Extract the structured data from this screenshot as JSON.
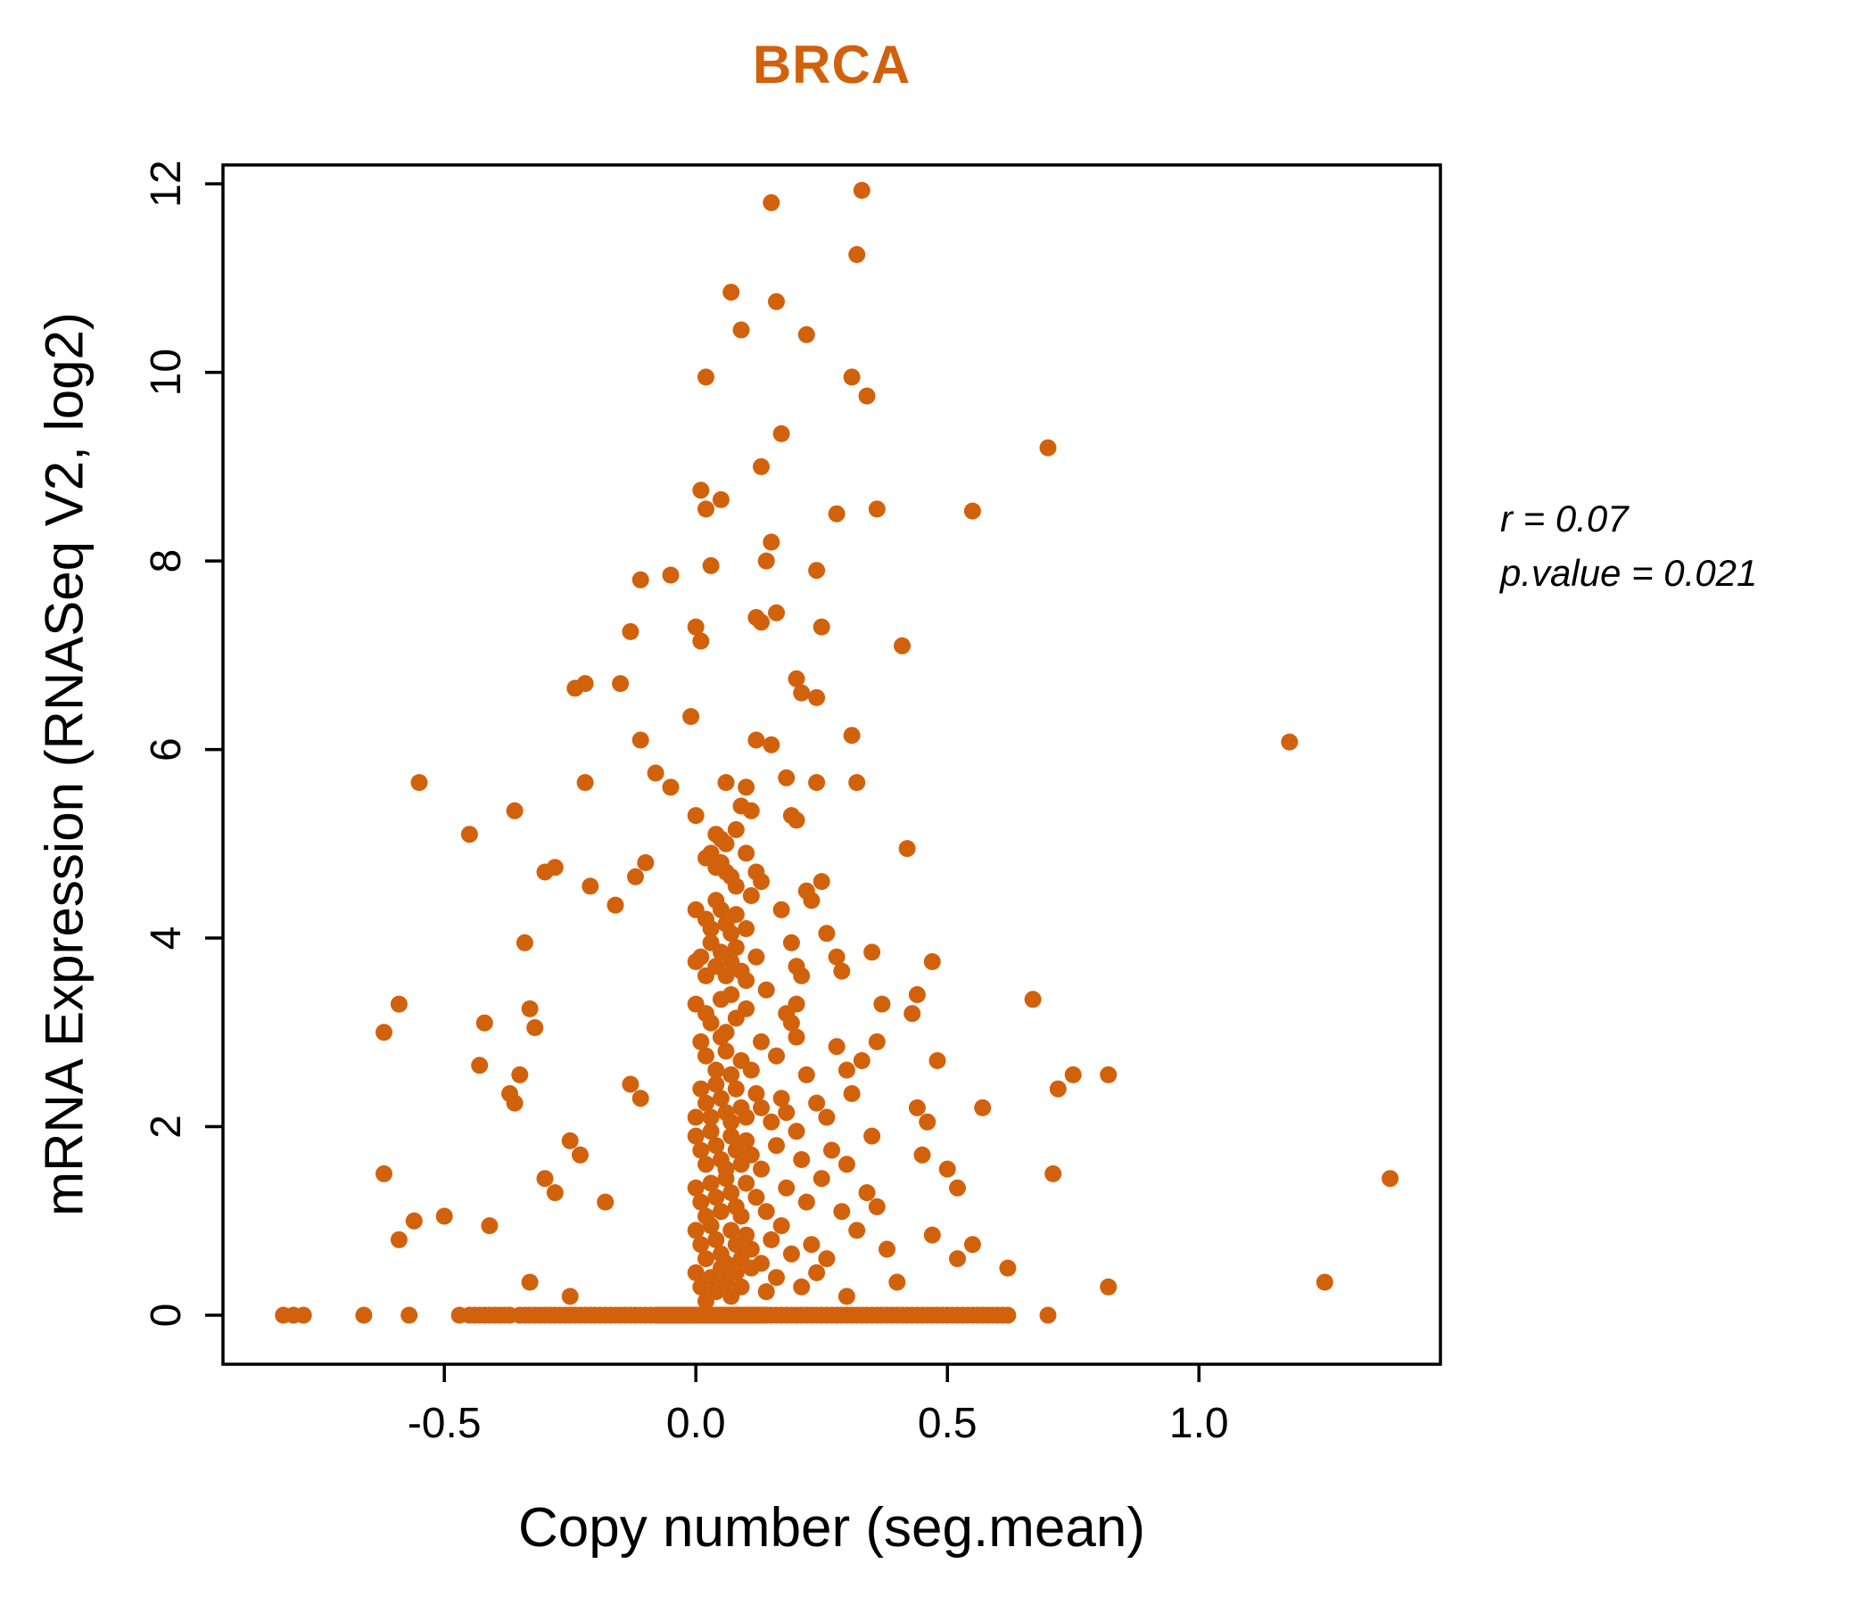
{
  "title": "BRCA",
  "annotation": {
    "r_line": "r = 0.07",
    "p_line": "p.value = 0.021"
  },
  "chart_data": {
    "type": "scatter",
    "title": "BRCA",
    "xlabel": "Copy number (seg.mean)",
    "ylabel": "mRNA Expression (RNASeq V2, log2)",
    "xlim": [
      -0.94,
      1.48
    ],
    "ylim": [
      -0.52,
      12.2
    ],
    "xticks": [
      -0.5,
      0.0,
      0.5,
      1.0
    ],
    "yticks": [
      0,
      2,
      4,
      6,
      8,
      10,
      12
    ],
    "grid": false,
    "legend": "none",
    "point_color": "#D2610C",
    "title_color": "#D2610C",
    "correlation_r": 0.07,
    "p_value": 0.021,
    "points": [
      [
        -0.82,
        0
      ],
      [
        -0.8,
        0
      ],
      [
        -0.78,
        0
      ],
      [
        -0.66,
        0
      ],
      [
        -0.57,
        0
      ],
      [
        -0.47,
        0
      ],
      [
        -0.45,
        0
      ],
      [
        -0.44,
        0
      ],
      [
        -0.43,
        0
      ],
      [
        -0.42,
        0
      ],
      [
        -0.41,
        0
      ],
      [
        -0.4,
        0
      ],
      [
        -0.39,
        0
      ],
      [
        -0.38,
        0
      ],
      [
        -0.37,
        0
      ],
      [
        -0.35,
        0
      ],
      [
        -0.34,
        0
      ],
      [
        -0.33,
        0
      ],
      [
        -0.32,
        0
      ],
      [
        -0.31,
        0
      ],
      [
        -0.3,
        0
      ],
      [
        -0.29,
        0
      ],
      [
        -0.28,
        0
      ],
      [
        -0.27,
        0
      ],
      [
        -0.26,
        0
      ],
      [
        -0.25,
        0
      ],
      [
        -0.24,
        0
      ],
      [
        -0.23,
        0
      ],
      [
        -0.22,
        0
      ],
      [
        -0.21,
        0
      ],
      [
        -0.2,
        0
      ],
      [
        -0.19,
        0
      ],
      [
        -0.18,
        0
      ],
      [
        -0.17,
        0
      ],
      [
        -0.16,
        0
      ],
      [
        -0.15,
        0
      ],
      [
        -0.14,
        0
      ],
      [
        -0.13,
        0
      ],
      [
        -0.12,
        0
      ],
      [
        -0.11,
        0
      ],
      [
        -0.1,
        0
      ],
      [
        -0.09,
        0
      ],
      [
        -0.08,
        0
      ],
      [
        -0.075,
        0
      ],
      [
        -0.07,
        0
      ],
      [
        -0.065,
        0
      ],
      [
        -0.06,
        0
      ],
      [
        -0.055,
        0
      ],
      [
        -0.05,
        0
      ],
      [
        -0.045,
        0
      ],
      [
        -0.04,
        0
      ],
      [
        -0.035,
        0
      ],
      [
        -0.03,
        0
      ],
      [
        -0.025,
        0
      ],
      [
        -0.02,
        0
      ],
      [
        -0.015,
        0
      ],
      [
        -0.01,
        0
      ],
      [
        -0.005,
        0
      ],
      [
        0.0,
        0
      ],
      [
        0.005,
        0
      ],
      [
        0.01,
        0
      ],
      [
        0.015,
        0
      ],
      [
        0.02,
        0
      ],
      [
        0.025,
        0
      ],
      [
        0.03,
        0
      ],
      [
        0.035,
        0
      ],
      [
        0.04,
        0
      ],
      [
        0.045,
        0
      ],
      [
        0.05,
        0
      ],
      [
        0.055,
        0
      ],
      [
        0.06,
        0
      ],
      [
        0.065,
        0
      ],
      [
        0.07,
        0
      ],
      [
        0.075,
        0
      ],
      [
        0.08,
        0
      ],
      [
        0.085,
        0
      ],
      [
        0.09,
        0
      ],
      [
        0.095,
        0
      ],
      [
        0.1,
        0
      ],
      [
        0.105,
        0
      ],
      [
        0.11,
        0
      ],
      [
        0.115,
        0
      ],
      [
        0.12,
        0
      ],
      [
        0.125,
        0
      ],
      [
        0.13,
        0
      ],
      [
        0.135,
        0
      ],
      [
        0.14,
        0
      ],
      [
        0.15,
        0
      ],
      [
        0.16,
        0
      ],
      [
        0.17,
        0
      ],
      [
        0.18,
        0
      ],
      [
        0.19,
        0
      ],
      [
        0.2,
        0
      ],
      [
        0.21,
        0
      ],
      [
        0.22,
        0
      ],
      [
        0.23,
        0
      ],
      [
        0.24,
        0
      ],
      [
        0.25,
        0
      ],
      [
        0.26,
        0
      ],
      [
        0.27,
        0
      ],
      [
        0.28,
        0
      ],
      [
        0.29,
        0
      ],
      [
        0.3,
        0
      ],
      [
        0.31,
        0
      ],
      [
        0.32,
        0
      ],
      [
        0.33,
        0
      ],
      [
        0.34,
        0
      ],
      [
        0.35,
        0
      ],
      [
        0.36,
        0
      ],
      [
        0.37,
        0
      ],
      [
        0.38,
        0
      ],
      [
        0.39,
        0
      ],
      [
        0.4,
        0
      ],
      [
        0.41,
        0
      ],
      [
        0.42,
        0
      ],
      [
        0.43,
        0
      ],
      [
        0.44,
        0
      ],
      [
        0.45,
        0
      ],
      [
        0.46,
        0
      ],
      [
        0.47,
        0
      ],
      [
        0.48,
        0
      ],
      [
        0.49,
        0
      ],
      [
        0.5,
        0
      ],
      [
        0.51,
        0
      ],
      [
        0.52,
        0
      ],
      [
        0.53,
        0
      ],
      [
        0.54,
        0
      ],
      [
        0.55,
        0
      ],
      [
        0.56,
        0
      ],
      [
        0.57,
        0
      ],
      [
        0.58,
        0
      ],
      [
        0.59,
        0
      ],
      [
        0.6,
        0
      ],
      [
        0.61,
        0
      ],
      [
        0.62,
        0
      ],
      [
        0.7,
        0
      ],
      [
        0.15,
        11.8
      ],
      [
        0.33,
        11.93
      ],
      [
        0.32,
        11.25
      ],
      [
        0.07,
        10.85
      ],
      [
        0.16,
        10.75
      ],
      [
        0.09,
        10.45
      ],
      [
        0.22,
        10.4
      ],
      [
        0.02,
        9.95
      ],
      [
        0.31,
        9.95
      ],
      [
        0.34,
        9.75
      ],
      [
        0.17,
        9.35
      ],
      [
        0.13,
        9.0
      ],
      [
        0.7,
        9.2
      ],
      [
        0.01,
        8.75
      ],
      [
        0.05,
        8.65
      ],
      [
        0.02,
        8.55
      ],
      [
        0.28,
        8.5
      ],
      [
        0.36,
        8.55
      ],
      [
        0.55,
        8.53
      ],
      [
        0.15,
        8.2
      ],
      [
        0.03,
        7.95
      ],
      [
        0.14,
        8.0
      ],
      [
        -0.11,
        7.8
      ],
      [
        -0.05,
        7.85
      ],
      [
        0.24,
        7.9
      ],
      [
        -0.13,
        7.25
      ],
      [
        0.0,
        7.3
      ],
      [
        0.01,
        7.15
      ],
      [
        0.12,
        7.4
      ],
      [
        0.13,
        7.35
      ],
      [
        0.25,
        7.3
      ],
      [
        0.41,
        7.1
      ],
      [
        0.16,
        7.45
      ],
      [
        -0.24,
        6.65
      ],
      [
        -0.22,
        6.7
      ],
      [
        -0.15,
        6.7
      ],
      [
        0.2,
        6.75
      ],
      [
        0.21,
        6.6
      ],
      [
        0.24,
        6.55
      ],
      [
        -0.01,
        6.35
      ],
      [
        0.12,
        6.1
      ],
      [
        0.15,
        6.05
      ],
      [
        0.31,
        6.15
      ],
      [
        1.18,
        6.08
      ],
      [
        -0.11,
        6.1
      ],
      [
        -0.55,
        5.65
      ],
      [
        -0.22,
        5.65
      ],
      [
        -0.08,
        5.75
      ],
      [
        -0.05,
        5.6
      ],
      [
        0.06,
        5.65
      ],
      [
        0.1,
        5.6
      ],
      [
        0.18,
        5.7
      ],
      [
        0.24,
        5.65
      ],
      [
        0.32,
        5.65
      ],
      [
        -0.36,
        5.35
      ],
      [
        -0.45,
        5.1
      ],
      [
        0.0,
        5.3
      ],
      [
        0.04,
        5.1
      ],
      [
        0.05,
        5.05
      ],
      [
        0.06,
        5.0
      ],
      [
        0.08,
        5.15
      ],
      [
        0.09,
        5.4
      ],
      [
        0.11,
        5.35
      ],
      [
        0.19,
        5.3
      ],
      [
        0.2,
        5.25
      ],
      [
        0.42,
        4.95
      ],
      [
        -0.3,
        4.7
      ],
      [
        -0.28,
        4.75
      ],
      [
        -0.21,
        4.55
      ],
      [
        -0.12,
        4.65
      ],
      [
        -0.1,
        4.8
      ],
      [
        0.02,
        4.85
      ],
      [
        0.03,
        4.9
      ],
      [
        0.04,
        4.75
      ],
      [
        0.05,
        4.8
      ],
      [
        0.06,
        4.7
      ],
      [
        0.07,
        4.65
      ],
      [
        0.08,
        4.55
      ],
      [
        0.1,
        4.9
      ],
      [
        0.12,
        4.7
      ],
      [
        0.13,
        4.6
      ],
      [
        0.22,
        4.5
      ],
      [
        0.25,
        4.6
      ],
      [
        -0.16,
        4.35
      ],
      [
        0.0,
        4.3
      ],
      [
        0.02,
        4.2
      ],
      [
        0.03,
        4.1
      ],
      [
        0.04,
        4.4
      ],
      [
        0.05,
        4.3
      ],
      [
        0.06,
        4.15
      ],
      [
        0.07,
        4.05
      ],
      [
        0.08,
        4.25
      ],
      [
        0.1,
        4.1
      ],
      [
        0.11,
        4.45
      ],
      [
        0.17,
        4.3
      ],
      [
        0.23,
        4.4
      ],
      [
        0.26,
        4.05
      ],
      [
        -0.34,
        3.95
      ],
      [
        0.0,
        3.75
      ],
      [
        0.01,
        3.8
      ],
      [
        0.02,
        3.6
      ],
      [
        0.03,
        3.95
      ],
      [
        0.04,
        3.7
      ],
      [
        0.05,
        3.85
      ],
      [
        0.06,
        3.6
      ],
      [
        0.07,
        3.75
      ],
      [
        0.08,
        3.9
      ],
      [
        0.09,
        3.65
      ],
      [
        0.1,
        3.55
      ],
      [
        0.12,
        3.8
      ],
      [
        0.19,
        3.95
      ],
      [
        0.2,
        3.7
      ],
      [
        0.21,
        3.6
      ],
      [
        0.28,
        3.8
      ],
      [
        0.29,
        3.65
      ],
      [
        0.47,
        3.75
      ],
      [
        0.35,
        3.85
      ],
      [
        -0.59,
        3.3
      ],
      [
        -0.62,
        3.0
      ],
      [
        -0.42,
        3.1
      ],
      [
        -0.33,
        3.25
      ],
      [
        -0.32,
        3.05
      ],
      [
        0.0,
        3.3
      ],
      [
        0.02,
        3.2
      ],
      [
        0.03,
        3.1
      ],
      [
        0.05,
        3.35
      ],
      [
        0.06,
        3.0
      ],
      [
        0.07,
        3.4
      ],
      [
        0.08,
        3.15
      ],
      [
        0.1,
        3.25
      ],
      [
        0.14,
        3.45
      ],
      [
        0.18,
        3.2
      ],
      [
        0.19,
        3.1
      ],
      [
        0.2,
        3.3
      ],
      [
        0.37,
        3.3
      ],
      [
        0.43,
        3.2
      ],
      [
        0.44,
        3.4
      ],
      [
        0.67,
        3.35
      ],
      [
        -0.43,
        2.65
      ],
      [
        -0.35,
        2.55
      ],
      [
        0.01,
        2.9
      ],
      [
        0.02,
        2.75
      ],
      [
        0.04,
        2.6
      ],
      [
        0.05,
        2.95
      ],
      [
        0.06,
        2.8
      ],
      [
        0.07,
        2.55
      ],
      [
        0.09,
        2.7
      ],
      [
        0.11,
        2.6
      ],
      [
        0.13,
        2.9
      ],
      [
        0.16,
        2.75
      ],
      [
        0.2,
        2.95
      ],
      [
        0.22,
        2.55
      ],
      [
        0.28,
        2.85
      ],
      [
        0.3,
        2.6
      ],
      [
        0.33,
        2.7
      ],
      [
        0.36,
        2.9
      ],
      [
        0.48,
        2.7
      ],
      [
        0.75,
        2.55
      ],
      [
        0.72,
        2.4
      ],
      [
        0.82,
        2.55
      ],
      [
        -0.37,
        2.35
      ],
      [
        -0.36,
        2.25
      ],
      [
        -0.13,
        2.45
      ],
      [
        -0.11,
        2.3
      ],
      [
        0.0,
        2.1
      ],
      [
        0.01,
        2.4
      ],
      [
        0.02,
        2.25
      ],
      [
        0.03,
        2.1
      ],
      [
        0.04,
        2.45
      ],
      [
        0.05,
        2.3
      ],
      [
        0.06,
        2.15
      ],
      [
        0.07,
        2.05
      ],
      [
        0.08,
        2.4
      ],
      [
        0.09,
        2.2
      ],
      [
        0.1,
        2.1
      ],
      [
        0.12,
        2.35
      ],
      [
        0.13,
        2.2
      ],
      [
        0.15,
        2.05
      ],
      [
        0.17,
        2.3
      ],
      [
        0.18,
        2.15
      ],
      [
        0.24,
        2.25
      ],
      [
        0.26,
        2.1
      ],
      [
        0.31,
        2.35
      ],
      [
        0.44,
        2.2
      ],
      [
        0.46,
        2.05
      ],
      [
        0.57,
        2.2
      ],
      [
        -0.25,
        1.85
      ],
      [
        -0.23,
        1.7
      ],
      [
        0.0,
        1.9
      ],
      [
        0.01,
        1.75
      ],
      [
        0.02,
        1.6
      ],
      [
        0.03,
        1.95
      ],
      [
        0.04,
        1.8
      ],
      [
        0.05,
        1.65
      ],
      [
        0.06,
        1.55
      ],
      [
        0.07,
        1.9
      ],
      [
        0.08,
        1.75
      ],
      [
        0.09,
        1.6
      ],
      [
        0.1,
        1.85
      ],
      [
        0.11,
        1.7
      ],
      [
        0.13,
        1.55
      ],
      [
        0.16,
        1.8
      ],
      [
        0.2,
        1.95
      ],
      [
        0.21,
        1.65
      ],
      [
        0.27,
        1.75
      ],
      [
        0.3,
        1.6
      ],
      [
        0.35,
        1.9
      ],
      [
        0.45,
        1.7
      ],
      [
        0.5,
        1.55
      ],
      [
        -0.62,
        1.5
      ],
      [
        -0.3,
        1.45
      ],
      [
        -0.28,
        1.3
      ],
      [
        -0.18,
        1.2
      ],
      [
        0.0,
        1.35
      ],
      [
        0.01,
        1.2
      ],
      [
        0.02,
        1.05
      ],
      [
        0.03,
        1.4
      ],
      [
        0.04,
        1.25
      ],
      [
        0.05,
        1.1
      ],
      [
        0.06,
        1.45
      ],
      [
        0.07,
        1.3
      ],
      [
        0.08,
        1.15
      ],
      [
        0.09,
        1.05
      ],
      [
        0.1,
        1.4
      ],
      [
        0.12,
        1.25
      ],
      [
        0.14,
        1.1
      ],
      [
        0.18,
        1.35
      ],
      [
        0.22,
        1.2
      ],
      [
        0.25,
        1.45
      ],
      [
        0.29,
        1.1
      ],
      [
        0.34,
        1.3
      ],
      [
        0.36,
        1.15
      ],
      [
        1.38,
        1.45
      ],
      [
        0.52,
        1.35
      ],
      [
        0.71,
        1.5
      ],
      [
        -0.56,
        1.0
      ],
      [
        -0.5,
        1.05
      ],
      [
        -0.59,
        0.8
      ],
      [
        -0.41,
        0.95
      ],
      [
        0.0,
        0.9
      ],
      [
        0.01,
        0.75
      ],
      [
        0.02,
        0.6
      ],
      [
        0.03,
        0.95
      ],
      [
        0.04,
        0.8
      ],
      [
        0.05,
        0.65
      ],
      [
        0.06,
        0.55
      ],
      [
        0.07,
        0.9
      ],
      [
        0.08,
        0.75
      ],
      [
        0.09,
        0.6
      ],
      [
        0.1,
        0.85
      ],
      [
        0.11,
        0.7
      ],
      [
        0.13,
        0.55
      ],
      [
        0.15,
        0.8
      ],
      [
        0.17,
        0.95
      ],
      [
        0.19,
        0.65
      ],
      [
        0.23,
        0.75
      ],
      [
        0.26,
        0.6
      ],
      [
        0.32,
        0.9
      ],
      [
        0.38,
        0.7
      ],
      [
        0.47,
        0.85
      ],
      [
        0.52,
        0.6
      ],
      [
        0.55,
        0.75
      ],
      [
        -0.33,
        0.35
      ],
      [
        -0.25,
        0.2
      ],
      [
        0.0,
        0.45
      ],
      [
        0.01,
        0.3
      ],
      [
        0.02,
        0.15
      ],
      [
        0.03,
        0.4
      ],
      [
        0.04,
        0.25
      ],
      [
        0.05,
        0.5
      ],
      [
        0.06,
        0.35
      ],
      [
        0.07,
        0.2
      ],
      [
        0.08,
        0.45
      ],
      [
        0.09,
        0.3
      ],
      [
        0.11,
        0.5
      ],
      [
        0.14,
        0.25
      ],
      [
        0.16,
        0.4
      ],
      [
        0.21,
        0.3
      ],
      [
        0.24,
        0.45
      ],
      [
        0.3,
        0.2
      ],
      [
        0.4,
        0.35
      ],
      [
        0.62,
        0.5
      ],
      [
        0.82,
        0.3
      ],
      [
        1.25,
        0.35
      ]
    ]
  }
}
